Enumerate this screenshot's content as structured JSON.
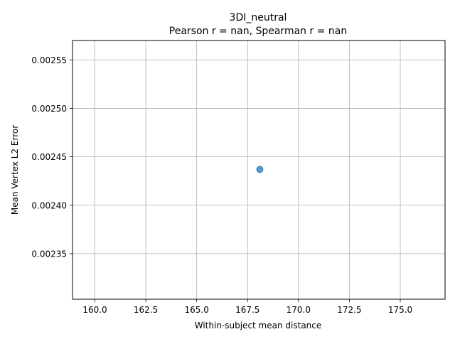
{
  "chart_data": {
    "type": "scatter",
    "title": "3DI_neutral",
    "subtitle": "Pearson r = nan, Spearman r = nan",
    "xlabel": "Within-subject mean distance",
    "ylabel": "Mean Vertex L2 Error",
    "xlim": [
      158.9,
      177.2
    ],
    "ylim": [
      0.002303,
      0.00257
    ],
    "x_ticks": [
      {
        "value": 160.0,
        "label": "160.0"
      },
      {
        "value": 162.5,
        "label": "162.5"
      },
      {
        "value": 165.0,
        "label": "165.0"
      },
      {
        "value": 167.5,
        "label": "167.5"
      },
      {
        "value": 170.0,
        "label": "170.0"
      },
      {
        "value": 172.5,
        "label": "172.5"
      },
      {
        "value": 175.0,
        "label": "175.0"
      }
    ],
    "y_ticks": [
      {
        "value": 0.00235,
        "label": "0.00235"
      },
      {
        "value": 0.0024,
        "label": "0.00240"
      },
      {
        "value": 0.00245,
        "label": "0.00245"
      },
      {
        "value": 0.0025,
        "label": "0.00250"
      },
      {
        "value": 0.00255,
        "label": "0.00255"
      }
    ],
    "grid": true,
    "point_color": "#1f77b4",
    "points": [
      {
        "x": 168.1,
        "y": 0.002437
      }
    ]
  }
}
